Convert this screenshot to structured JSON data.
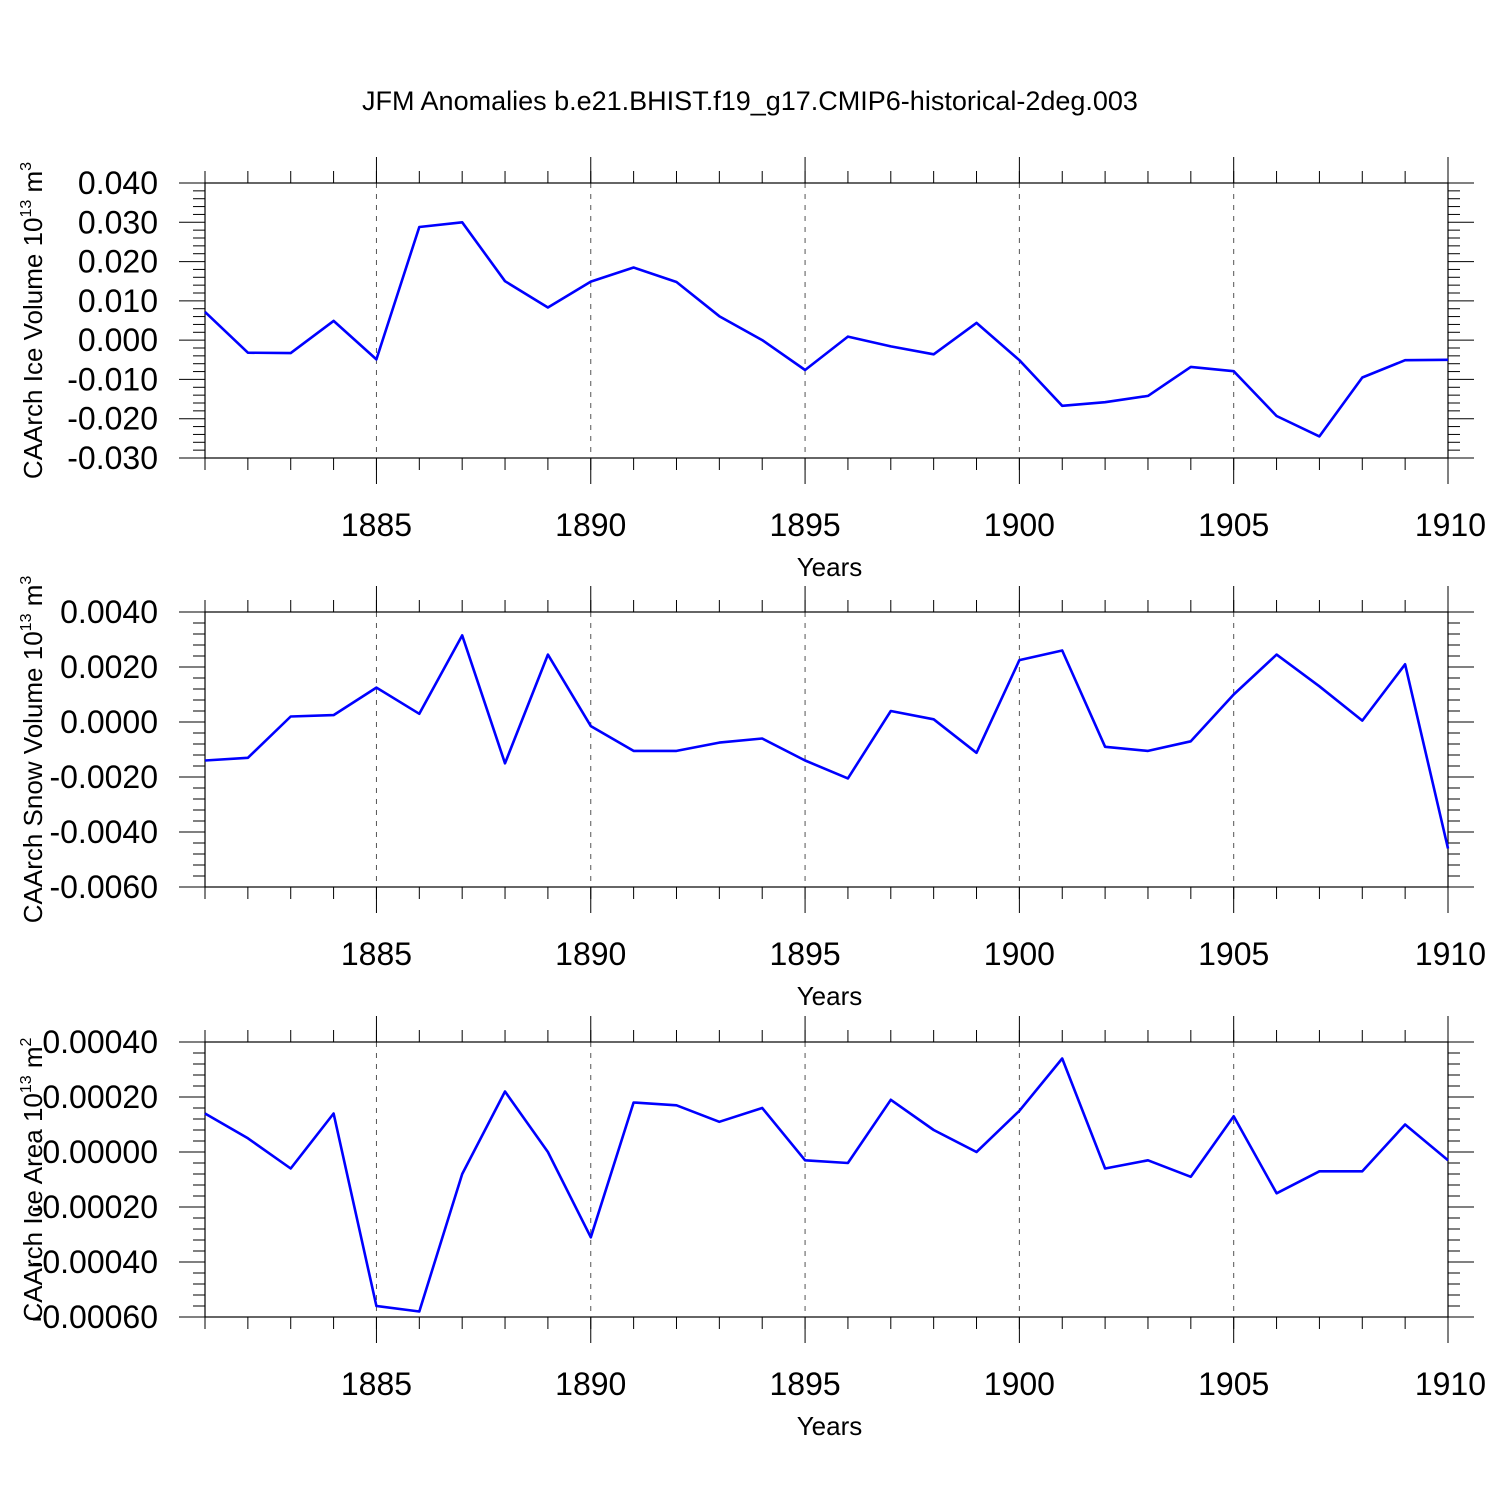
{
  "title": "JFM Anomalies b.e21.BHIST.f19_g17.CMIP6-historical-2deg.003",
  "colors": {
    "line": "#0000ff",
    "axis": "#000000",
    "grid": "#555555"
  },
  "chart_data": [
    {
      "type": "line",
      "ylabel": {
        "text": "CAArch Ice Volume 10",
        "sup": "13",
        "unit": " m",
        "unit_sup": "3"
      },
      "xlabel": "Years",
      "xlim": [
        1881,
        1910
      ],
      "ylim": [
        -0.03,
        0.04
      ],
      "yticks": [
        "0.040",
        "0.030",
        "0.020",
        "0.010",
        "0.000",
        "-0.010",
        "-0.020",
        "-0.030"
      ],
      "xticks": [
        "1885",
        "1890",
        "1895",
        "1900",
        "1905",
        "1910"
      ],
      "grid": "dashed vertical at labeled years",
      "series": [
        {
          "x": [
            1881,
            1882,
            1883,
            1884,
            1885,
            1886,
            1887,
            1888,
            1889,
            1890,
            1891,
            1892,
            1893,
            1894,
            1895,
            1896,
            1897,
            1898,
            1899,
            1900,
            1901,
            1902,
            1903,
            1904,
            1905,
            1906,
            1907,
            1908,
            1909,
            1910
          ],
          "values": [
            0.0072,
            -0.0032,
            -0.0033,
            0.0049,
            -0.0049,
            0.0288,
            0.03,
            0.015,
            0.0083,
            0.0149,
            0.0185,
            0.0148,
            0.0061,
            0.0,
            -0.0076,
            0.0009,
            -0.0016,
            -0.0036,
            0.0044,
            -0.0051,
            -0.0167,
            -0.0158,
            -0.0142,
            -0.0068,
            -0.0079,
            -0.0193,
            -0.0245,
            -0.0095,
            -0.0051,
            -0.005
          ]
        }
      ]
    },
    {
      "type": "line",
      "ylabel": {
        "text": "CAArch Snow Volume 10",
        "sup": "13",
        "unit": " m",
        "unit_sup": "3"
      },
      "xlabel": "Years",
      "xlim": [
        1881,
        1910
      ],
      "ylim": [
        -0.006,
        0.004
      ],
      "yticks": [
        "0.0040",
        "0.0020",
        "0.0000",
        "-0.0020",
        "-0.0040",
        "-0.0060"
      ],
      "xticks": [
        "1885",
        "1890",
        "1895",
        "1900",
        "1905",
        "1910"
      ],
      "grid": "dashed vertical at labeled years",
      "series": [
        {
          "x": [
            1881,
            1882,
            1883,
            1884,
            1885,
            1886,
            1887,
            1888,
            1889,
            1890,
            1891,
            1892,
            1893,
            1894,
            1895,
            1896,
            1897,
            1898,
            1899,
            1900,
            1901,
            1902,
            1903,
            1904,
            1905,
            1906,
            1907,
            1908,
            1909,
            1910
          ],
          "values": [
            -0.0014,
            -0.0013,
            0.0002,
            0.00025,
            0.00125,
            0.0003,
            0.00315,
            -0.0015,
            0.00245,
            -0.00015,
            -0.00105,
            -0.00105,
            -0.00075,
            -0.0006,
            -0.0014,
            -0.00205,
            0.0004,
            0.0001,
            -0.00112,
            0.00225,
            0.0026,
            -0.0009,
            -0.00105,
            -0.0007,
            0.001,
            0.00245,
            0.0013,
            5e-05,
            0.0021,
            -0.0046
          ]
        }
      ]
    },
    {
      "type": "line",
      "ylabel": {
        "text": "CAArch Ice Area 10",
        "sup": "13",
        "unit": " m",
        "unit_sup": "2"
      },
      "xlabel": "Years",
      "xlim": [
        1881,
        1910
      ],
      "ylim": [
        -0.0006,
        0.0004
      ],
      "yticks": [
        "0.00040",
        "0.00020",
        "0.00000",
        "-0.00020",
        "-0.00040",
        "-0.00060"
      ],
      "xticks": [
        "1885",
        "1890",
        "1895",
        "1900",
        "1905",
        "1910"
      ],
      "grid": "dashed vertical at labeled years",
      "series": [
        {
          "x": [
            1881,
            1882,
            1883,
            1884,
            1885,
            1886,
            1887,
            1888,
            1889,
            1890,
            1891,
            1892,
            1893,
            1894,
            1895,
            1896,
            1897,
            1898,
            1899,
            1900,
            1901,
            1902,
            1903,
            1904,
            1905,
            1906,
            1907,
            1908,
            1909,
            1910
          ],
          "values": [
            0.00014,
            5e-05,
            -6e-05,
            0.00014,
            -0.00056,
            -0.00058,
            -8e-05,
            0.00022,
            0.0,
            -0.00031,
            0.00018,
            0.00017,
            0.00011,
            0.00016,
            -3e-05,
            -4e-05,
            0.00019,
            8e-05,
            0.0,
            0.00015,
            0.00034,
            -6e-05,
            -3e-05,
            -9e-05,
            0.00013,
            -0.00015,
            -7e-05,
            -7e-05,
            0.0001,
            -3e-05
          ]
        }
      ]
    }
  ]
}
